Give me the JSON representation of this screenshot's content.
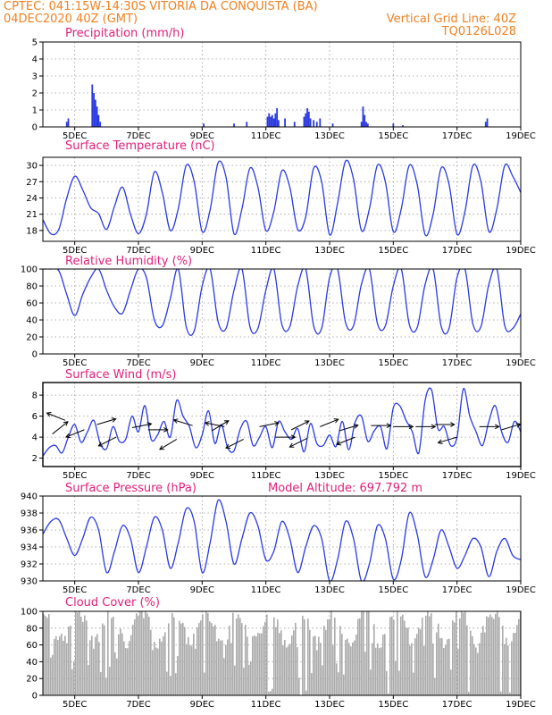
{
  "header": {
    "line1_left": "CPTEC:   041:15W-14:30S   VITORIA DA CONQUISTA (BA)",
    "line2_left": "04DEC2020 40Z (GMT)",
    "line2_right": "Vertical Grid Line: 40Z",
    "line3_right": "TQ0126L028"
  },
  "x_axis": {
    "tick_labels": [
      "5DEC",
      "7DEC",
      "9DEC",
      "11DEC",
      "13DEC",
      "15DEC",
      "17DEC",
      "19DEC"
    ],
    "range_days": [
      4.0,
      19.0
    ],
    "tick_days": [
      5,
      7,
      9,
      11,
      13,
      15,
      17,
      19
    ]
  },
  "chart_data": [
    {
      "type": "bar",
      "title": "Precipitation (mm/h)",
      "ylim": [
        0,
        5
      ],
      "yticks": [
        0,
        1,
        2,
        3,
        4,
        5
      ],
      "color": "#2a3adf",
      "x": [
        4.75,
        4.8,
        5.55,
        5.6,
        5.65,
        5.7,
        5.75,
        5.8,
        9.05,
        10.0,
        10.4,
        11.05,
        11.1,
        11.15,
        11.2,
        11.25,
        11.3,
        11.35,
        11.4,
        11.6,
        11.9,
        12.2,
        12.25,
        12.3,
        12.35,
        12.4,
        12.5,
        12.6,
        12.7,
        13.1,
        14.0,
        14.05,
        14.1,
        14.15,
        14.2,
        15.0,
        15.3,
        17.9,
        17.95
      ],
      "values": [
        0.3,
        0.5,
        2.5,
        2.0,
        1.6,
        1.2,
        0.7,
        0.3,
        0.2,
        0.2,
        0.3,
        0.6,
        0.8,
        0.6,
        0.7,
        0.5,
        0.8,
        1.1,
        0.4,
        0.5,
        0.3,
        0.6,
        0.8,
        1.1,
        0.9,
        0.5,
        0.4,
        0.3,
        0.5,
        0.2,
        0.3,
        1.2,
        0.7,
        0.3,
        0.2,
        0.2,
        0.1,
        0.3,
        0.5
      ]
    },
    {
      "type": "line",
      "title": "Surface Temperature (nC)",
      "ylim": [
        16,
        31.5
      ],
      "yticks": [
        18,
        21,
        24,
        27,
        30
      ],
      "color": "#2a3adf",
      "x": [
        4.0,
        4.25,
        4.5,
        4.75,
        5.0,
        5.25,
        5.5,
        5.75,
        6.0,
        6.25,
        6.5,
        6.75,
        7.0,
        7.25,
        7.5,
        7.75,
        8.0,
        8.25,
        8.5,
        8.75,
        9.0,
        9.25,
        9.5,
        9.75,
        10.0,
        10.25,
        10.5,
        10.75,
        11.0,
        11.25,
        11.5,
        11.75,
        12.0,
        12.25,
        12.5,
        12.75,
        13.0,
        13.25,
        13.5,
        13.75,
        14.0,
        14.25,
        14.5,
        14.75,
        15.0,
        15.25,
        15.5,
        15.75,
        16.0,
        16.25,
        16.5,
        16.75,
        17.0,
        17.25,
        17.5,
        17.75,
        18.0,
        18.25,
        18.5,
        18.75,
        19.0
      ],
      "values": [
        20.0,
        17.4,
        18.2,
        24.0,
        28.0,
        25.5,
        22.2,
        21.1,
        18.2,
        22.5,
        26.0,
        21.0,
        17.4,
        21.0,
        28.8,
        25.0,
        18.0,
        22.0,
        30.0,
        27.0,
        17.8,
        21.8,
        30.5,
        27.8,
        17.4,
        22.0,
        29.5,
        26.0,
        18.0,
        21.5,
        29.0,
        26.0,
        18.2,
        20.5,
        29.5,
        27.0,
        17.2,
        23.0,
        30.8,
        27.5,
        18.0,
        22.0,
        30.0,
        27.0,
        17.8,
        22.0,
        30.0,
        26.5,
        17.2,
        21.0,
        29.5,
        26.5,
        17.3,
        21.5,
        30.0,
        27.0,
        17.8,
        22.0,
        30.0,
        28.0,
        25.0
      ]
    },
    {
      "type": "line",
      "title": "Relative Humidity (%)",
      "ylim": [
        0,
        100
      ],
      "yticks": [
        0,
        20,
        40,
        60,
        80,
        100
      ],
      "color": "#2a3adf",
      "x": [
        4.0,
        4.25,
        4.5,
        4.75,
        5.0,
        5.25,
        5.5,
        5.75,
        6.0,
        6.25,
        6.5,
        6.75,
        7.0,
        7.25,
        7.5,
        7.75,
        8.0,
        8.25,
        8.5,
        8.75,
        9.0,
        9.25,
        9.5,
        9.75,
        10.0,
        10.25,
        10.5,
        10.75,
        11.0,
        11.25,
        11.5,
        11.75,
        12.0,
        12.25,
        12.5,
        12.75,
        13.0,
        13.25,
        13.5,
        13.75,
        14.0,
        14.25,
        14.5,
        14.75,
        15.0,
        15.25,
        15.5,
        15.75,
        16.0,
        16.25,
        16.5,
        16.75,
        17.0,
        17.25,
        17.5,
        17.75,
        18.0,
        18.25,
        18.5,
        18.75,
        19.0
      ],
      "values": [
        100,
        100,
        98,
        70,
        45,
        70,
        90,
        100,
        75,
        55,
        48,
        75,
        100,
        90,
        40,
        33,
        65,
        100,
        32,
        27,
        80,
        100,
        38,
        30,
        75,
        100,
        32,
        30,
        75,
        100,
        35,
        32,
        80,
        100,
        33,
        30,
        90,
        100,
        37,
        33,
        82,
        100,
        36,
        33,
        80,
        100,
        35,
        31,
        82,
        100,
        33,
        30,
        90,
        100,
        35,
        32,
        82,
        100,
        33,
        30,
        47
      ]
    },
    {
      "type": "line",
      "title": "Surface Wind (m/s)",
      "ylim": [
        1.2,
        9.2
      ],
      "yticks": [
        2,
        4,
        6,
        8
      ],
      "color": "#2a3adf",
      "x": [
        4.0,
        4.2,
        4.4,
        4.6,
        4.8,
        5.0,
        5.2,
        5.4,
        5.6,
        5.8,
        6.0,
        6.2,
        6.4,
        6.6,
        6.8,
        7.0,
        7.2,
        7.4,
        7.6,
        7.8,
        8.0,
        8.2,
        8.4,
        8.6,
        8.8,
        9.0,
        9.2,
        9.4,
        9.6,
        9.8,
        10.0,
        10.2,
        10.4,
        10.6,
        10.8,
        11.0,
        11.2,
        11.4,
        11.6,
        11.8,
        12.0,
        12.2,
        12.4,
        12.6,
        12.8,
        13.0,
        13.2,
        13.4,
        13.6,
        13.8,
        14.0,
        14.2,
        14.4,
        14.6,
        14.8,
        15.0,
        15.2,
        15.4,
        15.6,
        15.8,
        16.0,
        16.2,
        16.4,
        16.6,
        16.8,
        17.0,
        17.2,
        17.4,
        17.6,
        17.8,
        18.0,
        18.2,
        18.4,
        18.6,
        18.8,
        19.0
      ],
      "values": [
        2.2,
        3.0,
        3.2,
        2.5,
        4.0,
        5.2,
        3.5,
        4.5,
        5.6,
        3.4,
        2.9,
        5.0,
        3.6,
        3.8,
        6.0,
        4.5,
        7.0,
        3.8,
        4.2,
        5.5,
        4.0,
        7.5,
        6.0,
        5.0,
        3.0,
        4.2,
        6.5,
        3.4,
        5.2,
        3.0,
        2.7,
        4.8,
        5.5,
        3.2,
        4.0,
        5.0,
        3.0,
        5.5,
        4.5,
        3.8,
        4.8,
        2.6,
        5.3,
        3.4,
        3.2,
        4.2,
        3.1,
        5.5,
        2.8,
        5.4,
        6.0,
        3.6,
        4.6,
        5.0,
        2.9,
        6.8,
        7.0,
        5.6,
        4.5,
        2.5,
        7.5,
        8.5,
        4.8,
        5.0,
        3.2,
        4.0,
        8.6,
        6.0,
        4.5,
        3.2,
        5.5,
        7.0,
        4.5,
        3.5,
        5.5,
        4.5
      ]
    },
    {
      "type": "line",
      "title": "Surface Pressure (hPa)",
      "annotation": "Model Altitude: 697.792 m",
      "ylim": [
        930,
        940
      ],
      "yticks": [
        930,
        932,
        934,
        936,
        938,
        940
      ],
      "color": "#2a3adf",
      "x": [
        4.0,
        4.25,
        4.5,
        4.75,
        5.0,
        5.25,
        5.5,
        5.75,
        6.0,
        6.25,
        6.5,
        6.75,
        7.0,
        7.25,
        7.5,
        7.75,
        8.0,
        8.25,
        8.5,
        8.75,
        9.0,
        9.25,
        9.5,
        9.75,
        10.0,
        10.25,
        10.5,
        10.75,
        11.0,
        11.25,
        11.5,
        11.75,
        12.0,
        12.25,
        12.5,
        12.75,
        13.0,
        13.25,
        13.5,
        13.75,
        14.0,
        14.25,
        14.5,
        14.75,
        15.0,
        15.25,
        15.5,
        15.75,
        16.0,
        16.25,
        16.5,
        16.75,
        17.0,
        17.25,
        17.5,
        17.75,
        18.0,
        18.25,
        18.5,
        18.75,
        19.0
      ],
      "values": [
        935.5,
        937.0,
        937.2,
        935.0,
        933.0,
        935.0,
        937.5,
        936.0,
        931.0,
        933.5,
        936.5,
        935.0,
        931.0,
        934.0,
        937.5,
        936.0,
        931.5,
        934.5,
        938.5,
        937.0,
        931.0,
        934.5,
        939.5,
        937.0,
        932.0,
        935.0,
        938.0,
        936.5,
        932.5,
        933.5,
        937.0,
        935.0,
        931.0,
        934.0,
        936.5,
        935.0,
        930.0,
        932.5,
        937.0,
        935.0,
        930.0,
        932.0,
        936.5,
        935.0,
        930.2,
        932.5,
        938.0,
        935.5,
        930.5,
        932.5,
        936.0,
        934.0,
        931.5,
        933.0,
        935.0,
        934.0,
        930.5,
        933.5,
        935.0,
        933.0,
        932.5
      ]
    },
    {
      "type": "bar",
      "title": "Cloud Cover (%)",
      "ylim": [
        0,
        100
      ],
      "yticks": [
        0,
        20,
        40,
        60,
        80,
        100
      ],
      "color": "#aaaaaa"
    }
  ],
  "wind_arrows": [
    {
      "x": 4.3,
      "value": 4.3,
      "dx": 1,
      "dy": 0.8
    },
    {
      "x": 4.7,
      "value": 5.6,
      "dx": -1,
      "dy": 0.4
    },
    {
      "x": 5.3,
      "value": 4.7,
      "dx": -1,
      "dy": -0.4
    },
    {
      "x": 5.7,
      "value": 5.2,
      "dx": 1,
      "dy": 0.3
    },
    {
      "x": 6.3,
      "value": 4.0,
      "dx": -1,
      "dy": -0.5
    },
    {
      "x": 6.8,
      "value": 4.9,
      "dx": 1,
      "dy": 0.2
    },
    {
      "x": 7.3,
      "value": 4.7,
      "dx": 1,
      "dy": 0.0
    },
    {
      "x": 8.2,
      "value": 3.8,
      "dx": -1,
      "dy": -0.6
    },
    {
      "x": 8.7,
      "value": 5.1,
      "dx": -1,
      "dy": 0.3
    },
    {
      "x": 9.3,
      "value": 4.6,
      "dx": 1,
      "dy": 0.6
    },
    {
      "x": 9.7,
      "value": 5.0,
      "dx": -1,
      "dy": 0.2
    },
    {
      "x": 10.3,
      "value": 3.8,
      "dx": -1,
      "dy": -0.5
    },
    {
      "x": 10.8,
      "value": 5.0,
      "dx": 1,
      "dy": 0.2
    },
    {
      "x": 11.3,
      "value": 4.0,
      "dx": 1,
      "dy": 0.0
    },
    {
      "x": 11.8,
      "value": 4.7,
      "dx": 1,
      "dy": 0.5
    },
    {
      "x": 12.3,
      "value": 3.9,
      "dx": -1,
      "dy": -0.5
    },
    {
      "x": 12.7,
      "value": 5.0,
      "dx": 1,
      "dy": 0.4
    },
    {
      "x": 13.3,
      "value": 4.6,
      "dx": 1,
      "dy": 0.3
    },
    {
      "x": 13.8,
      "value": 4.0,
      "dx": -1,
      "dy": -0.4
    },
    {
      "x": 14.3,
      "value": 5.1,
      "dx": 1,
      "dy": 0.0
    },
    {
      "x": 15.0,
      "value": 5.0,
      "dx": 1,
      "dy": 0.0
    },
    {
      "x": 15.7,
      "value": 5.0,
      "dx": 1,
      "dy": 0.0
    },
    {
      "x": 16.3,
      "value": 5.2,
      "dx": 1,
      "dy": 0.0
    },
    {
      "x": 17.0,
      "value": 4.0,
      "dx": -1,
      "dy": -0.3
    },
    {
      "x": 17.7,
      "value": 5.0,
      "dx": 1,
      "dy": 0.0
    },
    {
      "x": 18.4,
      "value": 4.7,
      "dx": 1,
      "dy": 0.3
    }
  ]
}
